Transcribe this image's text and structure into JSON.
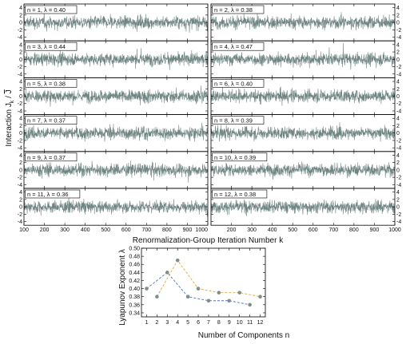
{
  "chart_data": [
    {
      "type": "line",
      "description_grid": "12 stacked time-series panels in 6 rows x 2 columns",
      "ylabel": "Interaction J",
      "ylabel_sub": "k",
      "ylabel_suffix": " / ",
      "ylabel_bar": "J",
      "xlabel": "Renormalization-Group Iteration Number k",
      "xlim": [
        100,
        1000
      ],
      "ylim": [
        -5,
        5
      ],
      "xticks": [
        "100",
        "200",
        "300",
        "400",
        "500",
        "600",
        "700",
        "800",
        "900",
        "1000"
      ],
      "yticks": [
        "4",
        "2",
        "0",
        "-2",
        "-4"
      ],
      "line_color": "#6f8582",
      "panels": [
        {
          "label": "n = 1, λ = 0.40",
          "n": 1,
          "lambda": 0.4
        },
        {
          "label": "n = 2, λ = 0.38",
          "n": 2,
          "lambda": 0.38
        },
        {
          "label": "n = 3, λ = 0.44",
          "n": 3,
          "lambda": 0.44
        },
        {
          "label": "n = 4, λ = 0.47",
          "n": 4,
          "lambda": 0.47
        },
        {
          "label": "n = 5, λ = 0.38",
          "n": 5,
          "lambda": 0.38
        },
        {
          "label": "n = 6, λ = 0.40",
          "n": 6,
          "lambda": 0.4
        },
        {
          "label": "n = 7, λ = 0.37",
          "n": 7,
          "lambda": 0.37
        },
        {
          "label": "n = 8, λ = 0.39",
          "n": 8,
          "lambda": 0.39
        },
        {
          "label": "n = 9, λ = 0.37",
          "n": 9,
          "lambda": 0.37
        },
        {
          "label": "n = 10, λ = 0.39",
          "n": 10,
          "lambda": 0.39
        },
        {
          "label": "n = 11, λ = 0.36",
          "n": 11,
          "lambda": 0.36
        },
        {
          "label": "n = 12, λ = 0.38",
          "n": 12,
          "lambda": 0.38
        }
      ]
    },
    {
      "type": "line",
      "xlabel": "Number of Components n",
      "ylabel": "Lyapunov Exponent λ",
      "x": [
        1,
        2,
        3,
        4,
        5,
        6,
        7,
        8,
        9,
        10,
        11,
        12
      ],
      "xlim": [
        0.5,
        12.5
      ],
      "ylim": [
        0.33,
        0.5
      ],
      "yticks": [
        0.34,
        0.36,
        0.38,
        0.4,
        0.42,
        0.44,
        0.46,
        0.48,
        0.5
      ],
      "grid": false,
      "series": [
        {
          "x": [
            1,
            3,
            5,
            7,
            9,
            11
          ],
          "values": [
            0.4,
            0.44,
            0.38,
            0.37,
            0.37,
            0.36
          ],
          "color": "#4c6fc4"
        },
        {
          "x": [
            2,
            4,
            6,
            8,
            10,
            12
          ],
          "values": [
            0.38,
            0.47,
            0.4,
            0.39,
            0.39,
            0.38
          ],
          "color": "#e3a73a"
        }
      ]
    }
  ]
}
